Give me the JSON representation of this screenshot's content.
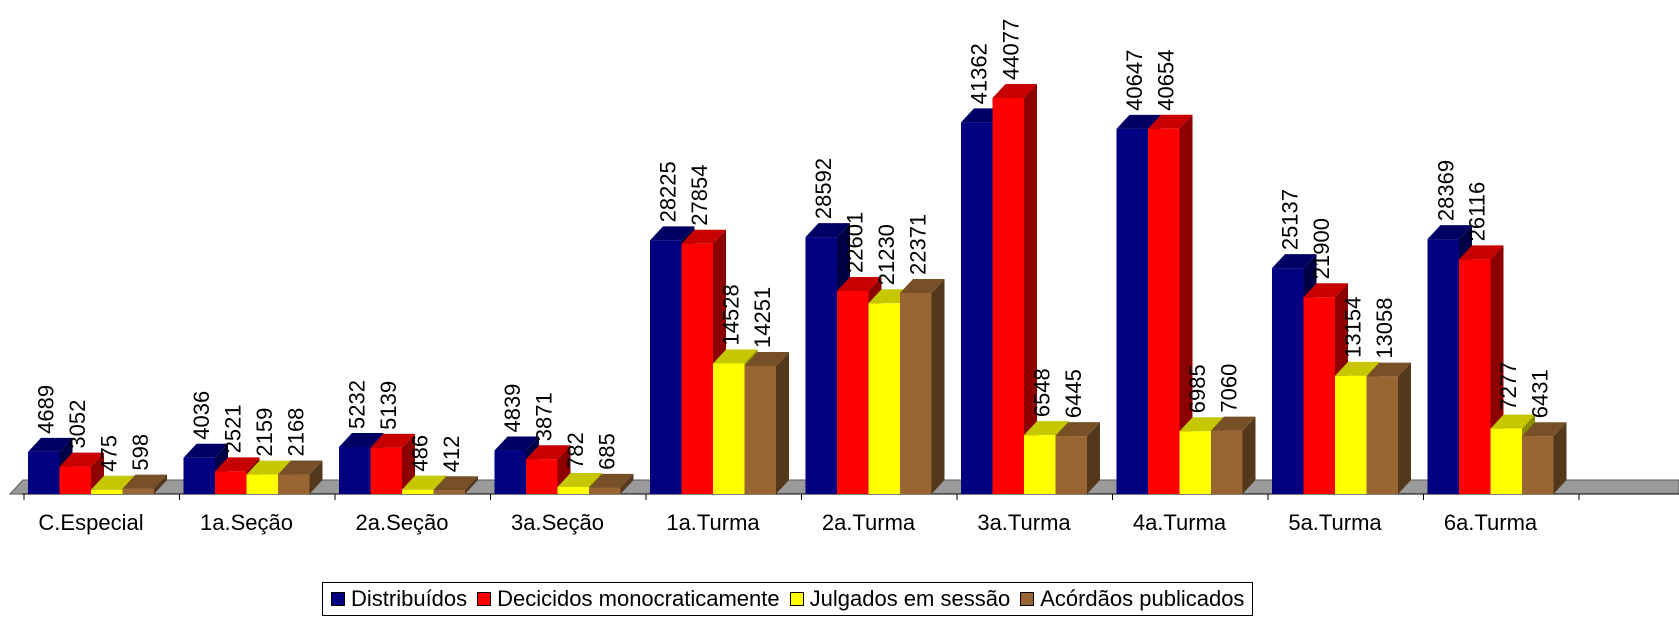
{
  "chart_data": {
    "type": "bar",
    "title": "",
    "xlabel": "",
    "ylabel": "",
    "categories": [
      "C.Especial",
      "1a.Seção",
      "2a.Seção",
      "3a.Seção",
      "1a.Turma",
      "2a.Turma",
      "3a.Turma",
      "4a.Turma",
      "5a.Turma",
      "6a.Turma"
    ],
    "series": [
      {
        "name": "Distribuídos",
        "color": "#000080",
        "values": [
          4689,
          4036,
          5232,
          4839,
          28225,
          28592,
          41362,
          40647,
          25137,
          28369
        ]
      },
      {
        "name": "Decicidos monocraticamente",
        "color": "#ff0000",
        "values": [
          3052,
          2521,
          5139,
          3871,
          27854,
          22601,
          44077,
          40654,
          21900,
          26116
        ]
      },
      {
        "name": "Julgados em sessão",
        "color": "#ffff00",
        "values": [
          475,
          2159,
          486,
          782,
          14528,
          21230,
          6548,
          6985,
          13154,
          7277
        ]
      },
      {
        "name": "Acórdãos publicados",
        "color": "#996633",
        "values": [
          598,
          2168,
          412,
          685,
          14251,
          22371,
          6445,
          7060,
          13058,
          6431
        ]
      }
    ],
    "ylim": [
      0,
      44077
    ],
    "grid": false,
    "legend_position": "bottom",
    "data_labels": true,
    "style": "3d-bar"
  }
}
